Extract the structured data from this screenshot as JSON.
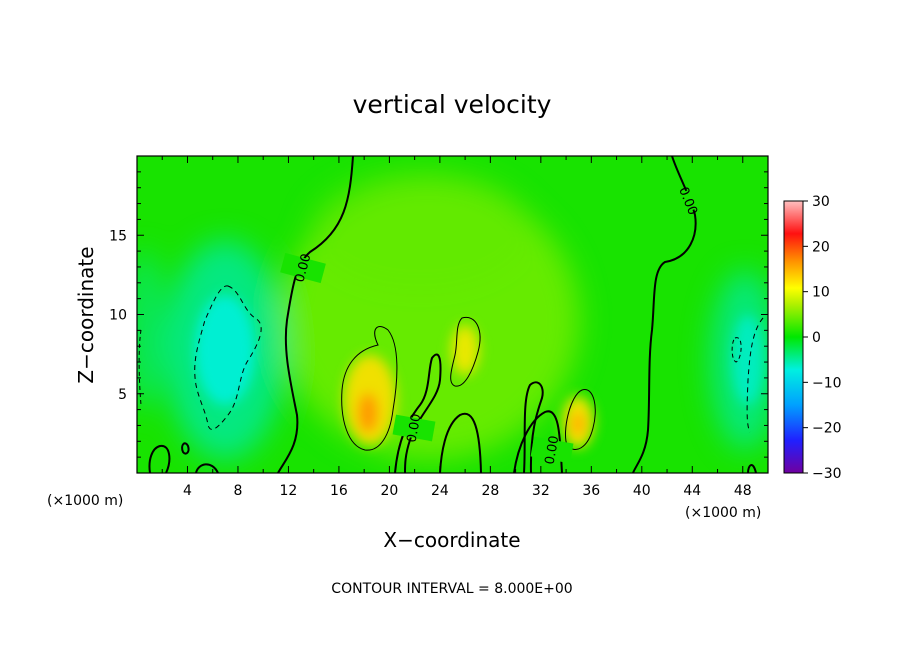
{
  "chart_data": {
    "type": "heatmap",
    "title": "vertical velocity",
    "xlabel": "X−coordinate",
    "ylabel": "Z−coordinate",
    "x_unit_left": "(×1000 m)",
    "x_unit_right": "(×1000 m)",
    "xlim": [
      0,
      50
    ],
    "ylim": [
      0,
      20
    ],
    "x_ticks": [
      4,
      8,
      12,
      16,
      20,
      24,
      28,
      32,
      36,
      40,
      44,
      48
    ],
    "y_ticks": [
      5,
      10,
      15
    ],
    "colorbar": {
      "min": -30,
      "max": 30,
      "ticks": [
        30,
        20,
        10,
        0,
        -10,
        -20,
        -30
      ],
      "tick_labels": [
        "30",
        "20",
        "10",
        "0",
        "−10",
        "−20",
        "−30"
      ]
    },
    "contour_interval_text": "CONTOUR INTERVAL = 8.000E+00",
    "contour_labels": [
      "0.00",
      "0.00",
      "0.00",
      "0.00",
      "0.00"
    ],
    "features": [
      {
        "x": 7,
        "z": 8,
        "value": -8
      },
      {
        "x": 18.5,
        "z": 3.6,
        "value": 14
      },
      {
        "x": 26,
        "z": 7.8,
        "value": 10
      },
      {
        "x": 34.5,
        "z": 3.5,
        "value": 12
      },
      {
        "x": 47.5,
        "z": 7,
        "value": -6
      },
      {
        "x": 24,
        "z": 13,
        "value": 6
      },
      {
        "x": 1,
        "z": 8,
        "value": -3
      }
    ],
    "background_value": 1,
    "grid": false,
    "legend": "right"
  }
}
